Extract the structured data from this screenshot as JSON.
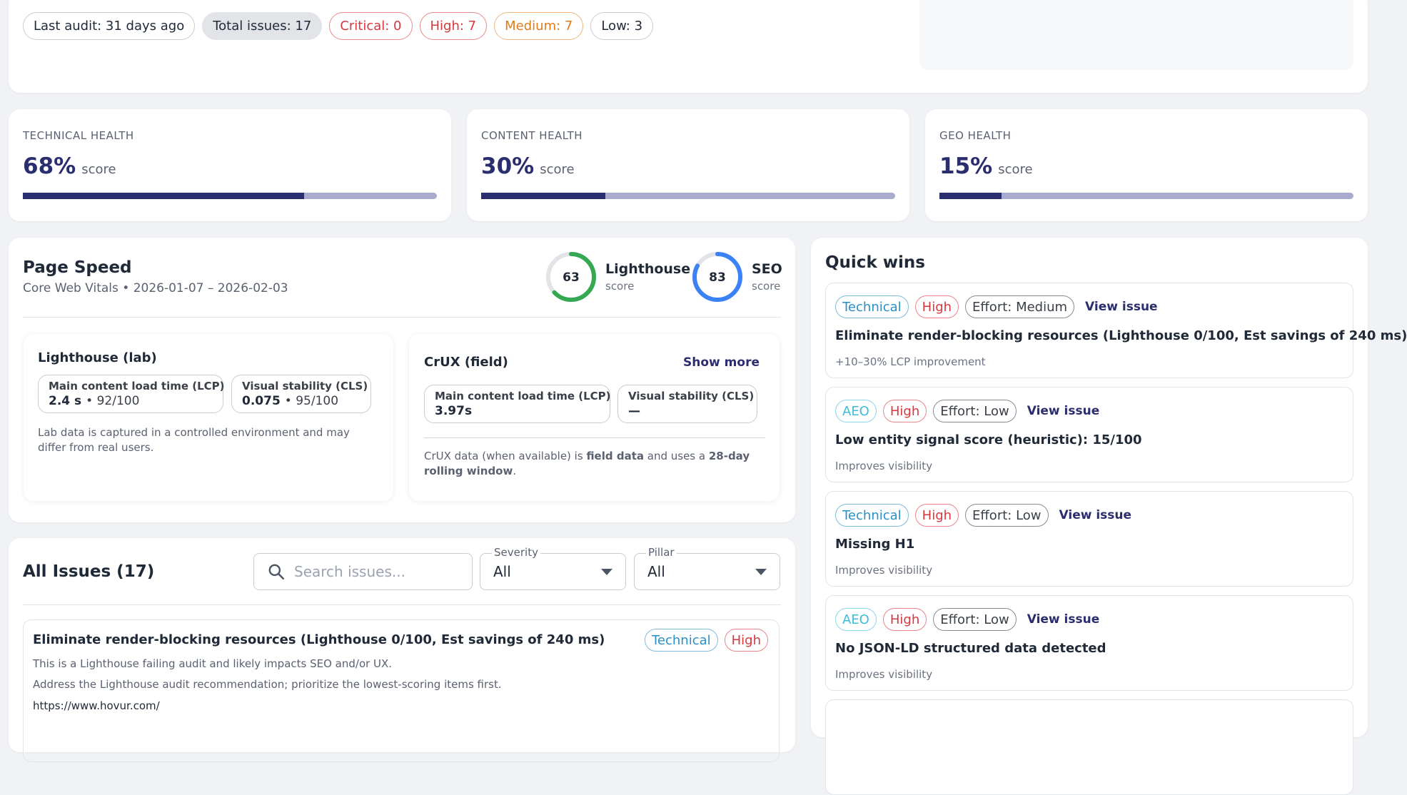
{
  "summary": {
    "chips": [
      {
        "text": "Last audit: 31 days ago",
        "color": "#1f2937",
        "border": "#c9ccd3",
        "background": "#ffffff"
      },
      {
        "text": "Total issues: 17",
        "color": "#1f2937",
        "border": "#e3e4e8",
        "background": "#e3e4e8"
      },
      {
        "text": "Critical: 0",
        "color": "#d9363e",
        "border": "#e98a8f",
        "background": "#ffffff"
      },
      {
        "text": "High: 7",
        "color": "#d9363e",
        "border": "#e98a8f",
        "background": "#ffffff"
      },
      {
        "text": "Medium: 7",
        "color": "#e07b1a",
        "border": "#efb67f",
        "background": "#ffffff"
      },
      {
        "text": "Low: 3",
        "color": "#1f2937",
        "border": "#c9ccd3",
        "background": "#ffffff"
      }
    ]
  },
  "health": {
    "range": [
      0,
      100
    ],
    "unit": "score",
    "cards": [
      {
        "label": "TECHNICAL HEALTH",
        "value": 68,
        "value_label": "68%"
      },
      {
        "label": "CONTENT HEALTH",
        "value": 30,
        "value_label": "30%"
      },
      {
        "label": "GEO HEALTH",
        "value": 15,
        "value_label": "15%"
      }
    ]
  },
  "page_speed": {
    "title": "Page Speed",
    "subtitle": "Core Web Vitals • 2026-01-07 – 2026-02-03",
    "gauge_range": [
      0,
      100
    ],
    "gauges": [
      {
        "value": 63,
        "label": "Lighthouse",
        "sub": "score",
        "color": "#34a853"
      },
      {
        "value": 83,
        "label": "SEO",
        "sub": "score",
        "color": "#3b82f6"
      }
    ],
    "lab": {
      "title": "Lighthouse (lab)",
      "metrics": [
        {
          "name": "Main content load time (LCP)",
          "value": "2.4 s",
          "score": "• 92/100"
        },
        {
          "name": "Visual stability (CLS)",
          "value": "0.075",
          "score": "• 95/100"
        }
      ],
      "note": "Lab data is captured in a controlled environment and may differ from real users."
    },
    "field": {
      "title": "CrUX (field)",
      "action": "Show more",
      "metrics": [
        {
          "name": "Main content load time (LCP)",
          "value": "3.97s"
        },
        {
          "name": "Visual stability (CLS)",
          "value": "—"
        }
      ],
      "note_parts": [
        "CrUX data (when available) is ",
        "field data",
        " and uses a ",
        "28-day rolling window",
        "."
      ]
    }
  },
  "quick_wins": {
    "title": "Quick wins",
    "items": [
      {
        "tags": [
          {
            "text": "Technical",
            "color": "#2a8fc9"
          },
          {
            "text": "High",
            "color": "#d9363e"
          },
          {
            "text": "Effort: Medium",
            "color": "#3b3f47"
          }
        ],
        "link": "View issue",
        "title": "Eliminate render-blocking resources (Lighthouse 0/100, Est savings of 240 ms)",
        "detail": "+10–30% LCP improvement"
      },
      {
        "tags": [
          {
            "text": "AEO",
            "color": "#3fbcd9"
          },
          {
            "text": "High",
            "color": "#d9363e"
          },
          {
            "text": "Effort: Low",
            "color": "#3b3f47"
          }
        ],
        "link": "View issue",
        "title": "Low entity signal score (heuristic): 15/100",
        "detail": "Improves visibility"
      },
      {
        "tags": [
          {
            "text": "Technical",
            "color": "#2a8fc9"
          },
          {
            "text": "High",
            "color": "#d9363e"
          },
          {
            "text": "Effort: Low",
            "color": "#3b3f47"
          }
        ],
        "link": "View issue",
        "title": "Missing H1",
        "detail": "Improves visibility"
      },
      {
        "tags": [
          {
            "text": "AEO",
            "color": "#3fbcd9"
          },
          {
            "text": "High",
            "color": "#d9363e"
          },
          {
            "text": "Effort: Low",
            "color": "#3b3f47"
          }
        ],
        "link": "View issue",
        "title": "No JSON-LD structured data detected",
        "detail": "Improves visibility"
      }
    ]
  },
  "issues": {
    "title": "All Issues (17)",
    "search_placeholder": "Search issues...",
    "filters": [
      {
        "label": "Severity",
        "value": "All"
      },
      {
        "label": "Pillar",
        "value": "All"
      }
    ],
    "items": [
      {
        "title": "Eliminate render-blocking resources (Lighthouse 0/100, Est savings of 240 ms)",
        "tags": [
          {
            "text": "Technical",
            "color": "#2a8fc9"
          },
          {
            "text": "High",
            "color": "#d9363e"
          }
        ],
        "lines": [
          "This is a Lighthouse failing audit and likely impacts SEO and/or UX.",
          "Address the Lighthouse audit recommendation; prioritize the lowest-scoring items first."
        ],
        "url": "https://www.hovur.com/"
      }
    ]
  }
}
